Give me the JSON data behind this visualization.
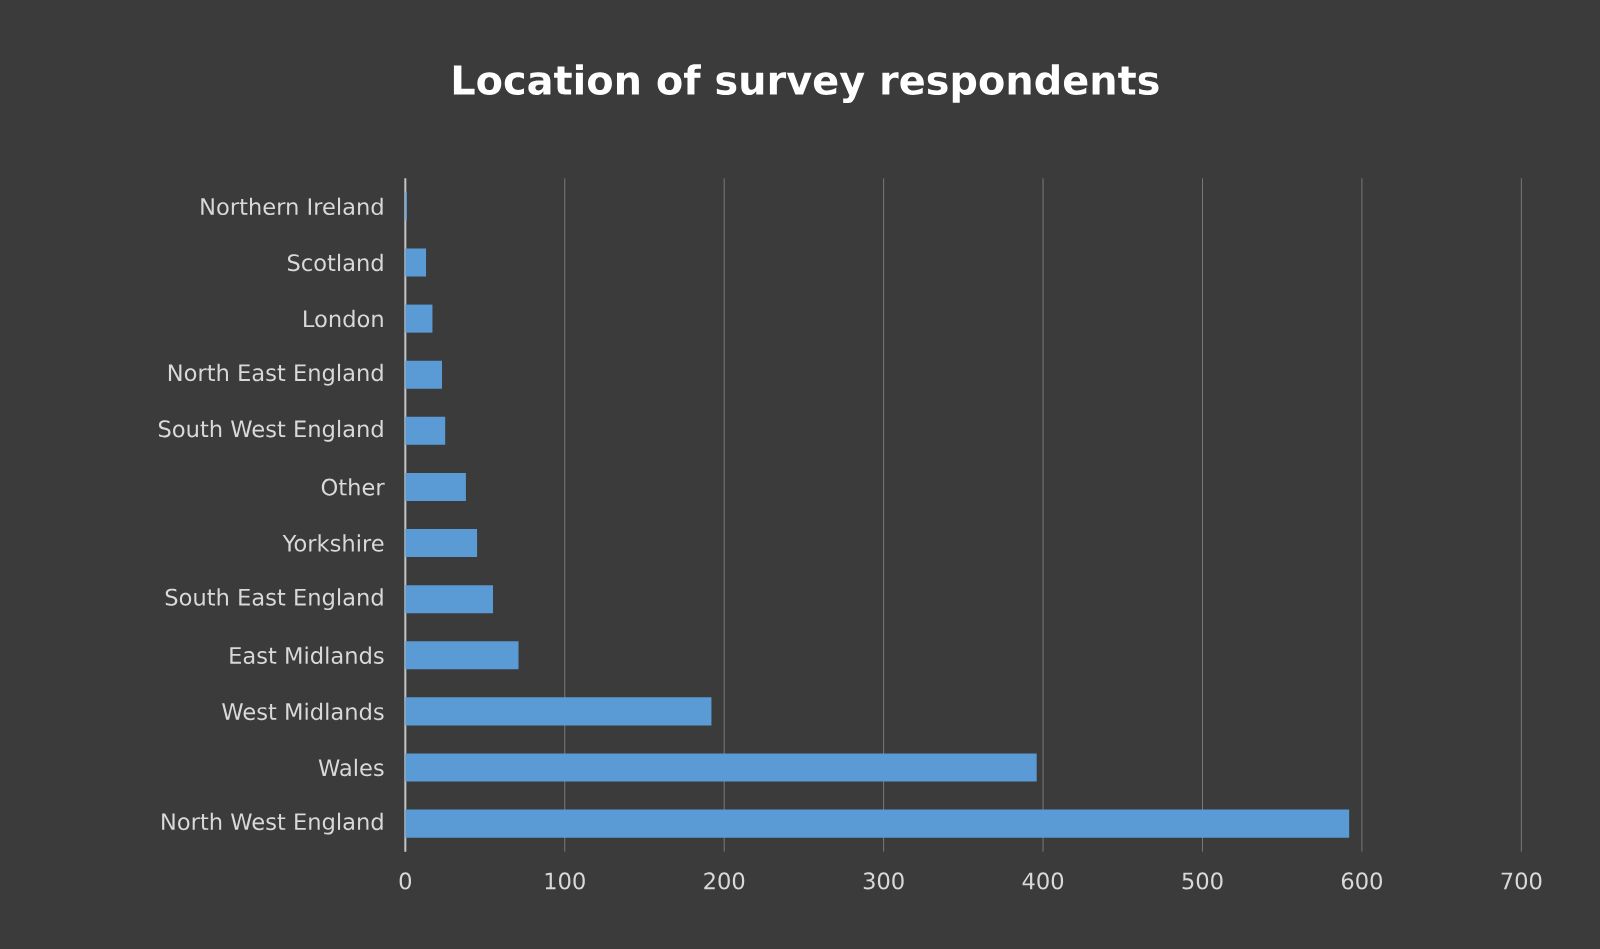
{
  "chart_data": {
    "type": "bar",
    "orientation": "horizontal",
    "title": "Location of survey respondents",
    "categories": [
      "Northern Ireland",
      "Scotland",
      "London",
      "North East England",
      "South West England",
      "Other",
      "Yorkshire",
      "South East England",
      "East Midlands",
      "West Midlands",
      "Wales",
      "North West England"
    ],
    "values": [
      1,
      13,
      17,
      23,
      25,
      38,
      45,
      55,
      71,
      192,
      396,
      592
    ],
    "color": "#5b9bd5",
    "xlim": [
      0,
      700
    ],
    "xticks": [
      0,
      100,
      200,
      300,
      400,
      500,
      600,
      700
    ],
    "grid": "x"
  }
}
